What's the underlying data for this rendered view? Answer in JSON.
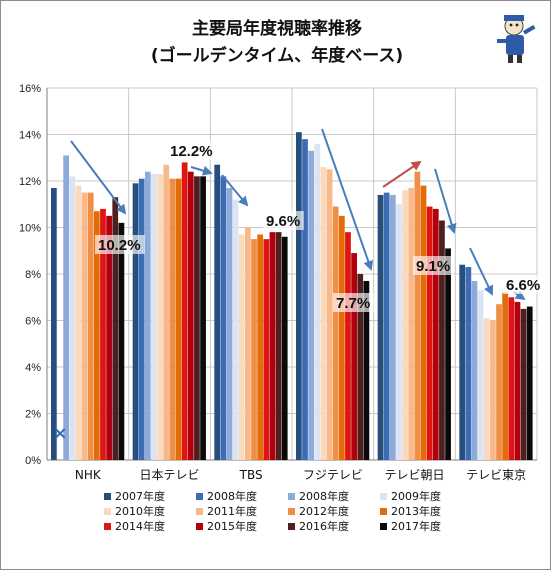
{
  "chart_data": {
    "type": "bar",
    "title": "主要局年度視聴率推移",
    "subtitle": "(ゴールデンタイム、年度ベース)",
    "xlabel": "",
    "ylabel": "",
    "ylim": [
      0,
      0.16
    ],
    "yticks": [
      "0%",
      "2%",
      "4%",
      "6%",
      "8%",
      "10%",
      "12%",
      "14%",
      "16%"
    ],
    "grid": true,
    "legend_position": "bottom",
    "categories": [
      "NHK",
      "日本テレビ",
      "TBS",
      "フジテレビ",
      "テレビ朝日",
      "テレビ東京"
    ],
    "series": [
      {
        "name": "2007年度",
        "color": "#264f7d",
        "values": [
          11.7,
          11.9,
          12.7,
          14.1,
          11.4,
          8.4
        ]
      },
      {
        "name": "2008年度",
        "color": "#3c6db4",
        "values": [
          null,
          12.1,
          12.2,
          13.8,
          11.5,
          8.3
        ]
      },
      {
        "name": "2008年度",
        "color": "#8eaadb",
        "values": [
          13.1,
          12.4,
          11.7,
          13.3,
          11.4,
          7.7
        ]
      },
      {
        "name": "2009年度",
        "color": "#dbe4f2",
        "values": [
          12.2,
          12.3,
          11.2,
          13.6,
          11.0,
          7.3
        ]
      },
      {
        "name": "2010年度",
        "color": "#fbd9bd",
        "values": [
          11.8,
          12.3,
          9.7,
          12.6,
          11.6,
          6.1
        ]
      },
      {
        "name": "2011年度",
        "color": "#f8b889",
        "values": [
          11.5,
          12.7,
          10.0,
          12.5,
          11.7,
          6.0
        ]
      },
      {
        "name": "2012年度",
        "color": "#f08e45",
        "values": [
          11.5,
          12.1,
          9.5,
          10.9,
          12.4,
          6.7
        ]
      },
      {
        "name": "2013年度",
        "color": "#e36c09",
        "values": [
          10.7,
          12.1,
          9.7,
          10.5,
          11.8,
          7.2
        ]
      },
      {
        "name": "2014年度",
        "color": "#e11414",
        "values": [
          10.8,
          12.8,
          9.5,
          9.8,
          10.9,
          7.0
        ]
      },
      {
        "name": "2015年度",
        "color": "#b0000e",
        "values": [
          10.5,
          12.4,
          9.8,
          8.9,
          10.8,
          6.8
        ]
      },
      {
        "name": "2016年度",
        "color": "#4f1e1e",
        "values": [
          11.3,
          12.2,
          9.8,
          8.0,
          10.3,
          6.5
        ]
      },
      {
        "name": "2017年度",
        "color": "#0a0a0a",
        "values": [
          10.2,
          12.2,
          9.6,
          7.7,
          9.1,
          6.6
        ]
      }
    ],
    "callouts": [
      {
        "category": "NHK",
        "text": "10.2%",
        "value": 10.2
      },
      {
        "category": "日本テレビ",
        "text": "12.2%",
        "value": 12.2
      },
      {
        "category": "TBS",
        "text": "9.6%",
        "value": 9.6
      },
      {
        "category": "フジテレビ",
        "text": "7.7%",
        "value": 7.7
      },
      {
        "category": "テレビ朝日",
        "text": "9.1%",
        "value": 9.1
      },
      {
        "category": "テレビ東京",
        "text": "6.6%",
        "value": 6.6
      }
    ],
    "trend_arrows": [
      {
        "category": "NHK",
        "direction": "down",
        "color": "#4a7ebb"
      },
      {
        "category": "日本テレビ",
        "direction": "down",
        "color": "#4a7ebb"
      },
      {
        "category": "TBS",
        "direction": "down",
        "color": "#4a7ebb"
      },
      {
        "category": "フジテレビ",
        "direction": "down",
        "color": "#4a7ebb"
      },
      {
        "category": "テレビ朝日",
        "direction": "up",
        "color": "#c0504d"
      },
      {
        "category": "テレビ朝日",
        "direction": "down",
        "color": "#4a7ebb"
      },
      {
        "category": "テレビ東京",
        "direction": "down",
        "color": "#4a7ebb"
      },
      {
        "category": "テレビ東京",
        "direction": "down",
        "color": "#4a7ebb"
      }
    ],
    "missing_marker": {
      "category": "NHK",
      "series_index": 1,
      "symbol": "×"
    }
  }
}
